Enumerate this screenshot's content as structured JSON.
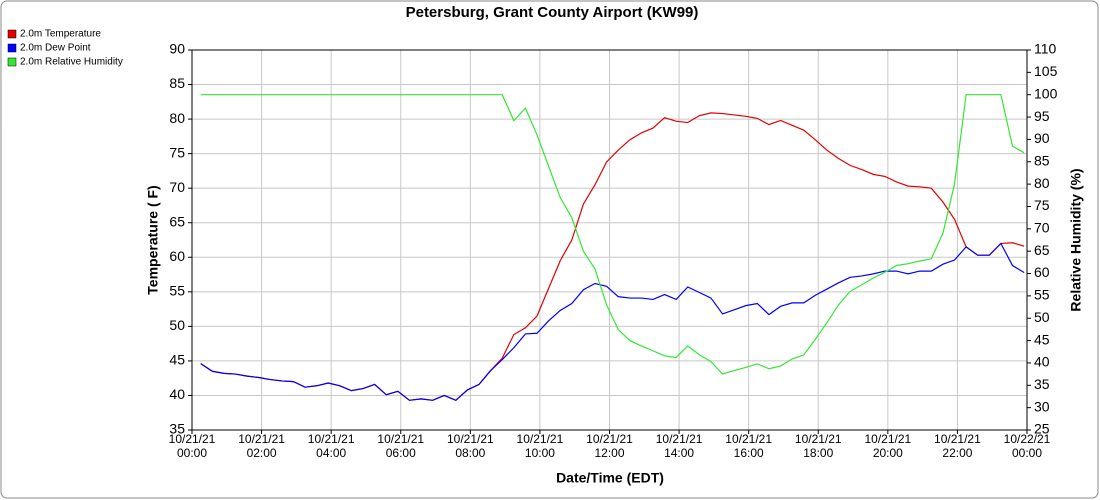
{
  "chart_data": {
    "type": "line",
    "title": "Petersburg, Grant County Airport (KW99)",
    "x_label": "Date/Time (EDT)",
    "y_label": "Temperature ( F)",
    "y2_label": "Relative Humidity (%)",
    "grid": true,
    "legend": "top-left",
    "xlim": [
      "10/21/21 00:00",
      "10/22/21 00:00"
    ],
    "xticks": [
      "10/21/21 00:00",
      "10/21/21 02:00",
      "10/21/21 04:00",
      "10/21/21 06:00",
      "10/21/21 08:00",
      "10/21/21 10:00",
      "10/21/21 12:00",
      "10/21/21 14:00",
      "10/21/21 16:00",
      "10/21/21 18:00",
      "10/21/21 20:00",
      "10/21/21 22:00",
      "10/22/21 00:00"
    ],
    "ylim": [
      35,
      90
    ],
    "yticks": [
      35,
      40,
      45,
      50,
      55,
      60,
      65,
      70,
      75,
      80,
      85,
      90
    ],
    "y2lim": [
      25,
      110
    ],
    "y2ticks": [
      25,
      30,
      35,
      40,
      45,
      50,
      55,
      60,
      65,
      70,
      75,
      80,
      85,
      90,
      95,
      100,
      105,
      110
    ],
    "x": [
      "10/21/21 00:15",
      "10/21/21 00:35",
      "10/21/21 00:55",
      "10/21/21 01:15",
      "10/21/21 01:35",
      "10/21/21 01:55",
      "10/21/21 02:15",
      "10/21/21 02:35",
      "10/21/21 02:55",
      "10/21/21 03:15",
      "10/21/21 03:35",
      "10/21/21 03:55",
      "10/21/21 04:15",
      "10/21/21 04:35",
      "10/21/21 04:55",
      "10/21/21 05:15",
      "10/21/21 05:35",
      "10/21/21 05:55",
      "10/21/21 06:15",
      "10/21/21 06:35",
      "10/21/21 06:55",
      "10/21/21 07:15",
      "10/21/21 07:35",
      "10/21/21 07:55",
      "10/21/21 08:15",
      "10/21/21 08:35",
      "10/21/21 08:55",
      "10/21/21 09:15",
      "10/21/21 09:35",
      "10/21/21 09:55",
      "10/21/21 10:15",
      "10/21/21 10:35",
      "10/21/21 10:55",
      "10/21/21 11:15",
      "10/21/21 11:35",
      "10/21/21 11:55",
      "10/21/21 12:15",
      "10/21/21 12:35",
      "10/21/21 12:55",
      "10/21/21 13:15",
      "10/21/21 13:35",
      "10/21/21 13:55",
      "10/21/21 14:15",
      "10/21/21 14:35",
      "10/21/21 14:55",
      "10/21/21 15:15",
      "10/21/21 15:35",
      "10/21/21 15:55",
      "10/21/21 16:15",
      "10/21/21 16:35",
      "10/21/21 16:55",
      "10/21/21 17:15",
      "10/21/21 17:35",
      "10/21/21 17:55",
      "10/21/21 18:15",
      "10/21/21 18:35",
      "10/21/21 18:55",
      "10/21/21 19:15",
      "10/21/21 19:35",
      "10/21/21 19:55",
      "10/21/21 20:15",
      "10/21/21 20:35",
      "10/21/21 20:55",
      "10/21/21 21:15",
      "10/21/21 21:35",
      "10/21/21 21:55",
      "10/21/21 22:15",
      "10/21/21 22:35",
      "10/21/21 22:55",
      "10/21/21 23:15",
      "10/21/21 23:35",
      "10/21/21 23:55"
    ],
    "series": [
      {
        "name": "2.0m Temperature",
        "color": "#e00000",
        "axis": "y",
        "values": [
          44.6,
          43.5,
          43.2,
          43.1,
          42.8,
          42.6,
          42.3,
          42.1,
          42.0,
          41.2,
          41.4,
          41.8,
          41.4,
          40.7,
          41.0,
          41.6,
          40.1,
          40.6,
          39.3,
          39.5,
          39.3,
          40.0,
          39.3,
          40.8,
          41.6,
          43.6,
          45.4,
          48.8,
          49.8,
          51.5,
          55.5,
          59.5,
          62.5,
          67.7,
          70.5,
          73.8,
          75.5,
          77.0,
          78.0,
          78.7,
          80.2,
          79.7,
          79.5,
          80.5,
          80.9,
          80.8,
          80.6,
          80.4,
          80.1,
          79.2,
          79.8,
          79.1,
          78.4,
          77.0,
          75.5,
          74.3,
          73.3,
          72.7,
          72.0,
          71.7,
          70.9,
          70.3,
          70.2,
          70.0,
          68.0,
          65.5,
          61.5,
          60.3,
          60.3,
          62.0,
          62.1,
          61.6
        ]
      },
      {
        "name": "2.0m Dew Point",
        "color": "#0000ff",
        "axis": "y",
        "values": [
          44.6,
          43.5,
          43.2,
          43.1,
          42.8,
          42.6,
          42.3,
          42.1,
          42.0,
          41.2,
          41.4,
          41.8,
          41.4,
          40.7,
          41.0,
          41.6,
          40.1,
          40.6,
          39.3,
          39.5,
          39.3,
          40.0,
          39.3,
          40.8,
          41.6,
          43.6,
          45.2,
          46.9,
          48.9,
          49.0,
          50.8,
          52.3,
          53.3,
          55.3,
          56.2,
          55.8,
          54.3,
          54.1,
          54.1,
          53.9,
          54.6,
          53.9,
          55.7,
          54.9,
          54.1,
          51.8,
          52.4,
          53.0,
          53.3,
          51.7,
          52.9,
          53.4,
          53.4,
          54.5,
          55.4,
          56.3,
          57.1,
          57.3,
          57.6,
          58.0,
          58.0,
          57.6,
          58.0,
          58.0,
          59.0,
          59.6,
          61.5,
          60.3,
          60.3,
          62.0,
          58.8,
          57.8
        ]
      },
      {
        "name": "2.0m Relative Humidity",
        "color": "#33e833",
        "axis": "y2",
        "values": [
          100,
          100,
          100,
          100,
          100,
          100,
          100,
          100,
          100,
          100,
          100,
          100,
          100,
          100,
          100,
          100,
          100,
          100,
          100,
          100,
          100,
          100,
          100,
          100,
          100,
          100,
          100,
          94.2,
          97.0,
          91.0,
          84.0,
          77.0,
          72.5,
          65.0,
          61.0,
          53.0,
          47.5,
          45.0,
          43.8,
          42.7,
          41.6,
          41.2,
          43.8,
          41.8,
          40.3,
          37.5,
          38.3,
          39.0,
          39.8,
          38.7,
          39.3,
          40.9,
          41.8,
          45.3,
          49.0,
          53.0,
          56.0,
          57.5,
          59.0,
          60.3,
          61.8,
          62.2,
          62.8,
          63.3,
          69.0,
          80.0,
          100,
          100,
          100,
          100,
          88.5,
          87.0
        ]
      }
    ]
  }
}
